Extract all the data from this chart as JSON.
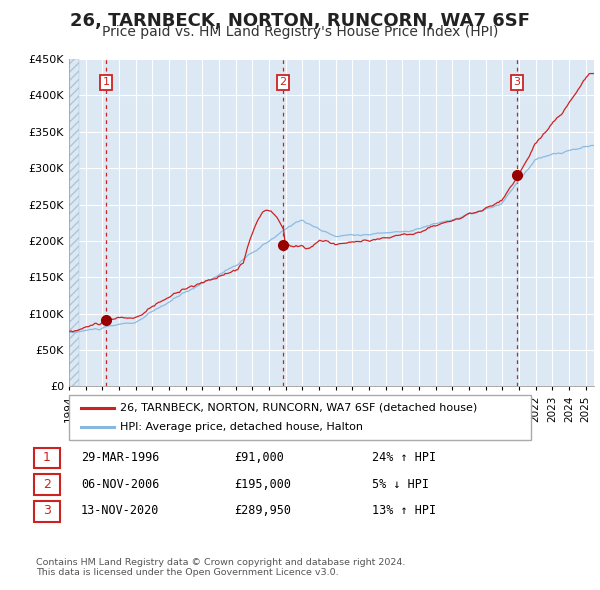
{
  "title": "26, TARNBECK, NORTON, RUNCORN, WA7 6SF",
  "subtitle": "Price paid vs. HM Land Registry's House Price Index (HPI)",
  "ylim": [
    0,
    450000
  ],
  "yticks": [
    0,
    50000,
    100000,
    150000,
    200000,
    250000,
    300000,
    350000,
    400000,
    450000
  ],
  "background_color": "#dce9f5",
  "grid_color": "#ffffff",
  "sale_prices": [
    91000,
    195000,
    289950
  ],
  "sale_years": [
    1996.21,
    2006.84,
    2020.87
  ],
  "sale_labels": [
    "1",
    "2",
    "3"
  ],
  "sale_dot_color": "#990000",
  "sale_line_color": "#cc2222",
  "hpi_line_color": "#88b8e0",
  "legend_label_red": "26, TARNBECK, NORTON, RUNCORN, WA7 6SF (detached house)",
  "legend_label_blue": "HPI: Average price, detached house, Halton",
  "table_rows": [
    [
      "1",
      "29-MAR-1996",
      "£91,000",
      "24% ↑ HPI"
    ],
    [
      "2",
      "06-NOV-2006",
      "£195,000",
      "5% ↓ HPI"
    ],
    [
      "3",
      "13-NOV-2020",
      "£289,950",
      "13% ↑ HPI"
    ]
  ],
  "footer": "Contains HM Land Registry data © Crown copyright and database right 2024.\nThis data is licensed under the Open Government Licence v3.0.",
  "title_fontsize": 13,
  "subtitle_fontsize": 10
}
